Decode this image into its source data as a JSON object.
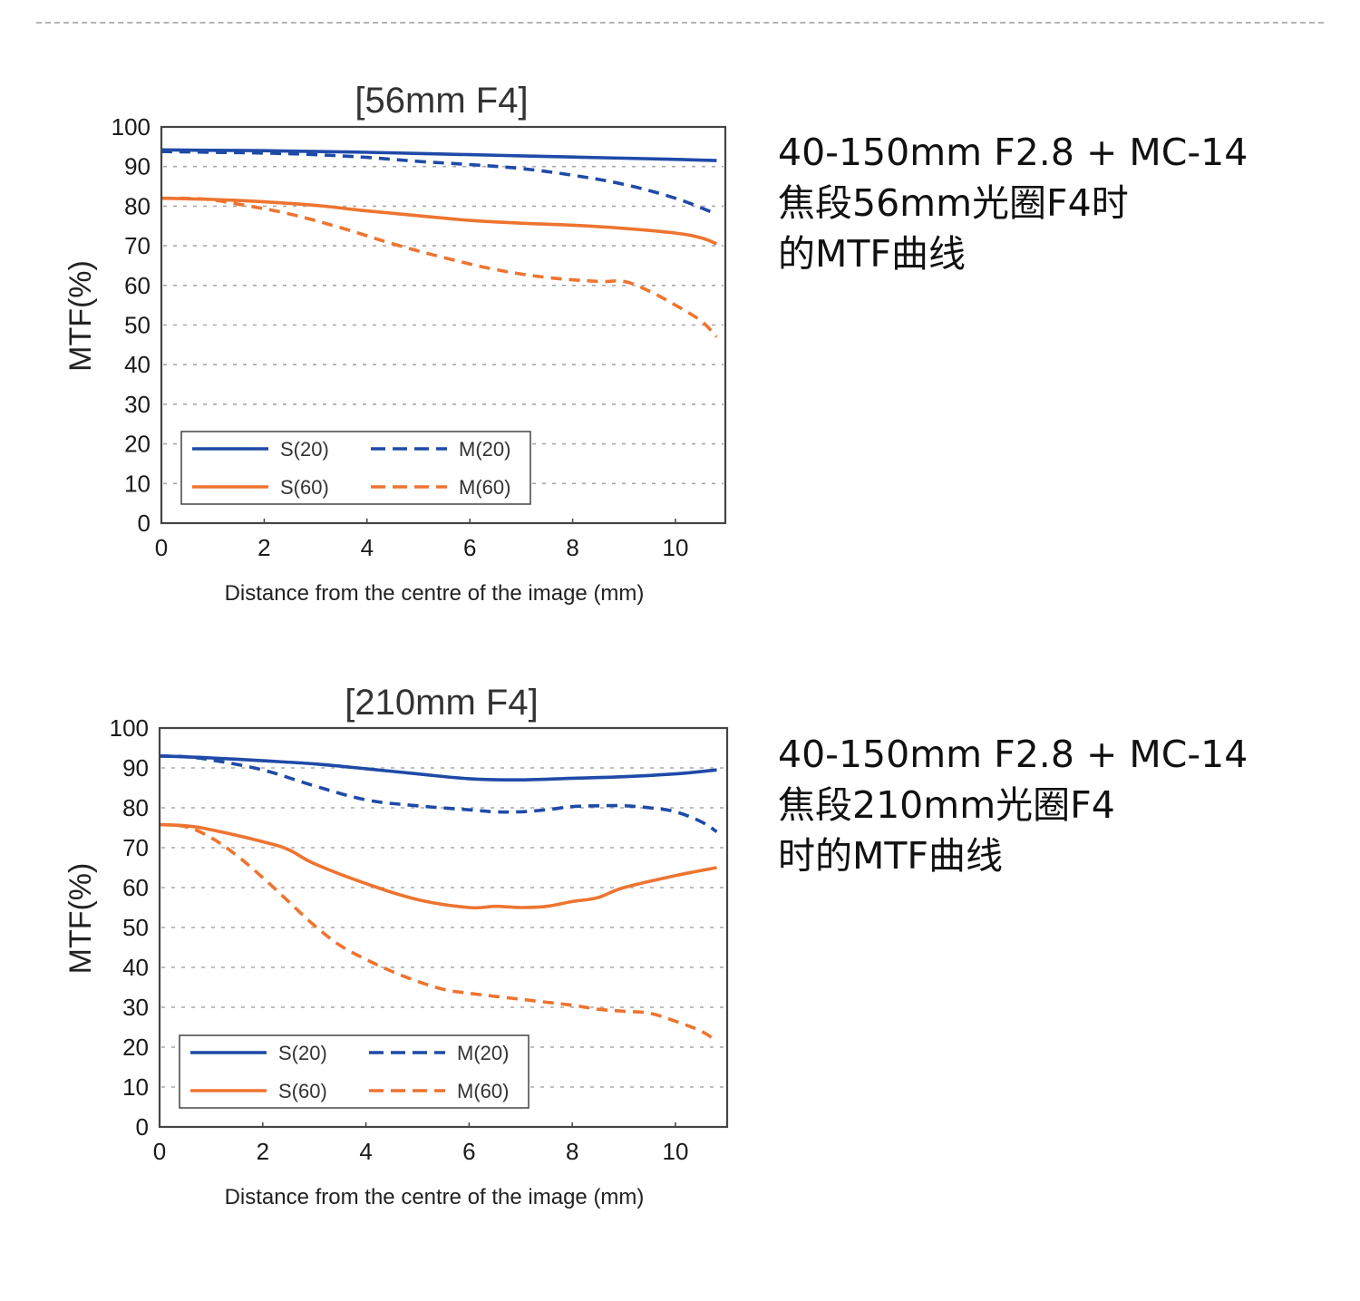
{
  "colors": {
    "s20": "#1f4aa8",
    "m20": "#1f4aa8",
    "s60": "#ee7430",
    "m60": "#ee7430",
    "grid": "#a8a8a8",
    "axis": "#444444",
    "divider": "#b4b4b4"
  },
  "captions": [
    {
      "lines": [
        "40-150mm F2.8 + MC-14",
        "焦段56mm光圈F4时",
        "的MTF曲线"
      ]
    },
    {
      "lines": [
        "40-150mm F2.8 + MC-14",
        "焦段210mm光圈F4",
        "时的MTF曲线"
      ]
    }
  ],
  "chart_data": [
    {
      "type": "line",
      "title": "[56mm F4]",
      "xlabel": "Distance from the centre of the image (mm)",
      "ylabel": "MTF(%)",
      "xlim": [
        0,
        11
      ],
      "ylim": [
        0,
        100
      ],
      "xticks": [
        0,
        2,
        4,
        6,
        8,
        10
      ],
      "yticks": [
        0,
        10,
        20,
        30,
        40,
        50,
        60,
        70,
        80,
        90,
        100
      ],
      "grid": "horizontal dotted",
      "legend_position": "bottom-left",
      "legend": [
        "S(20)",
        "M(20)",
        "S(60)",
        "M(60)"
      ],
      "series": [
        {
          "name": "S(20)",
          "style": "solid",
          "color_key": "s20",
          "x": [
            0,
            1,
            2,
            3,
            4,
            5,
            6,
            7,
            8,
            9,
            10,
            10.8
          ],
          "y": [
            94.2,
            94.1,
            94.0,
            93.8,
            93.6,
            93.3,
            93.0,
            92.7,
            92.4,
            92.1,
            91.8,
            91.5
          ]
        },
        {
          "name": "M(20)",
          "style": "dashed",
          "color_key": "m20",
          "x": [
            0,
            1,
            2,
            3,
            4,
            5,
            6,
            7,
            8,
            9,
            10,
            10.8
          ],
          "y": [
            93.8,
            93.6,
            93.4,
            93.0,
            92.3,
            91.3,
            90.5,
            89.5,
            87.8,
            85.5,
            82.0,
            78.0
          ]
        },
        {
          "name": "S(60)",
          "style": "solid",
          "color_key": "s60",
          "x": [
            0,
            1,
            2,
            3,
            4,
            5,
            6,
            7,
            8,
            9,
            10,
            10.5,
            10.8
          ],
          "y": [
            82.0,
            81.7,
            81.1,
            80.2,
            78.8,
            77.6,
            76.4,
            75.7,
            75.2,
            74.4,
            73.2,
            72.0,
            70.5
          ]
        },
        {
          "name": "M(60)",
          "style": "dashed",
          "color_key": "m60",
          "x": [
            0,
            0.8,
            1.5,
            2.5,
            3.5,
            4.5,
            5.5,
            6.5,
            7.5,
            8.5,
            9.0,
            9.5,
            10.0,
            10.5,
            10.8
          ],
          "y": [
            82.0,
            81.8,
            80.5,
            78.0,
            74.5,
            70.5,
            67.0,
            64.0,
            62.0,
            61.0,
            61.0,
            58.5,
            55.0,
            51.0,
            47.0
          ]
        }
      ]
    },
    {
      "type": "line",
      "title": "[210mm F4]",
      "xlabel": "Distance from the centre of the image (mm)",
      "ylabel": "MTF(%)",
      "xlim": [
        0,
        11
      ],
      "ylim": [
        0,
        100
      ],
      "xticks": [
        0,
        2,
        4,
        6,
        8,
        10
      ],
      "yticks": [
        0,
        10,
        20,
        30,
        40,
        50,
        60,
        70,
        80,
        90,
        100
      ],
      "grid": "horizontal dotted",
      "legend_position": "bottom-left",
      "legend": [
        "S(20)",
        "M(20)",
        "S(60)",
        "M(60)"
      ],
      "series": [
        {
          "name": "S(20)",
          "style": "solid",
          "color_key": "s20",
          "x": [
            0,
            1,
            2,
            3,
            4,
            5,
            6,
            7,
            8,
            9,
            10,
            10.8
          ],
          "y": [
            93.0,
            92.5,
            91.8,
            91.0,
            89.8,
            88.5,
            87.3,
            87.0,
            87.4,
            87.8,
            88.5,
            89.5
          ]
        },
        {
          "name": "M(20)",
          "style": "dashed",
          "color_key": "m20",
          "x": [
            0,
            0.5,
            1,
            2,
            3,
            4,
            5,
            6,
            6.5,
            7,
            7.5,
            8,
            8.5,
            9,
            9.5,
            10,
            10.5,
            10.8
          ],
          "y": [
            93.0,
            92.8,
            92.0,
            89.5,
            85.5,
            82.0,
            80.5,
            79.5,
            79.0,
            79.0,
            79.5,
            80.3,
            80.5,
            80.5,
            80.0,
            79.0,
            76.5,
            74.0
          ]
        },
        {
          "name": "S(60)",
          "style": "solid",
          "color_key": "s60",
          "x": [
            0,
            0.5,
            1,
            2,
            2.5,
            3,
            4,
            5,
            6,
            6.5,
            7,
            7.5,
            8,
            8.5,
            9,
            10,
            10.8
          ],
          "y": [
            75.8,
            75.5,
            74.5,
            71.5,
            69.5,
            66.0,
            61.0,
            57.0,
            55.0,
            55.3,
            55.0,
            55.3,
            56.5,
            57.5,
            60.0,
            63.0,
            65.0
          ]
        },
        {
          "name": "M(60)",
          "style": "dashed",
          "color_key": "m60",
          "x": [
            0,
            0.5,
            1,
            1.5,
            2,
            2.5,
            3,
            3.5,
            4,
            4.5,
            5,
            5.5,
            6,
            7,
            8,
            8.5,
            9,
            9.5,
            10,
            10.5,
            10.8
          ],
          "y": [
            75.8,
            75.3,
            72.5,
            68.0,
            62.5,
            56.5,
            50.5,
            45.5,
            42.0,
            39.0,
            36.5,
            34.5,
            33.5,
            32.0,
            30.5,
            29.5,
            29.0,
            28.5,
            26.5,
            24.0,
            21.5
          ]
        }
      ]
    }
  ]
}
